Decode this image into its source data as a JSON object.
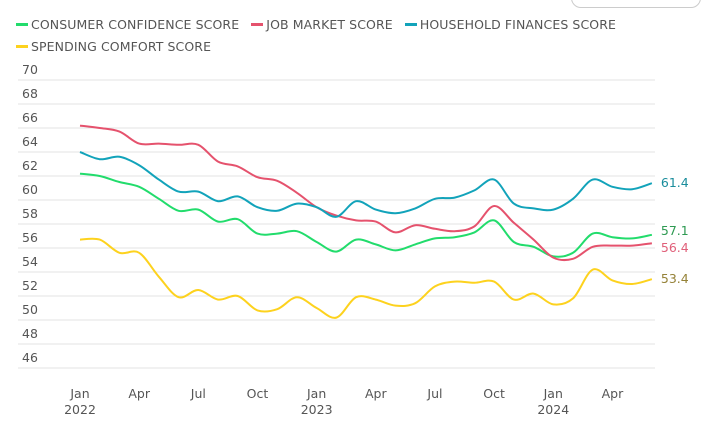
{
  "chart_data": {
    "type": "line",
    "title": "",
    "xlabel": "",
    "ylabel": "",
    "ylim": [
      46,
      70
    ],
    "yticks": [
      46,
      48,
      50,
      52,
      54,
      56,
      58,
      60,
      62,
      64,
      66,
      68,
      70
    ],
    "grid": true,
    "legend_placement": "top",
    "x_range": [
      "2022-01",
      "2024-06"
    ],
    "xtick_labels": [
      {
        "month": "2022-01",
        "label": "Jan",
        "year": "2022"
      },
      {
        "month": "2022-04",
        "label": "Apr",
        "year": ""
      },
      {
        "month": "2022-07",
        "label": "Jul",
        "year": ""
      },
      {
        "month": "2022-10",
        "label": "Oct",
        "year": ""
      },
      {
        "month": "2023-01",
        "label": "Jan",
        "year": "2023"
      },
      {
        "month": "2023-04",
        "label": "Apr",
        "year": ""
      },
      {
        "month": "2023-07",
        "label": "Jul",
        "year": ""
      },
      {
        "month": "2023-10",
        "label": "Oct",
        "year": ""
      },
      {
        "month": "2024-01",
        "label": "Jan",
        "year": "2024"
      },
      {
        "month": "2024-04",
        "label": "Apr",
        "year": ""
      }
    ],
    "x": [
      "2022-01",
      "2022-02",
      "2022-03",
      "2022-04",
      "2022-05",
      "2022-06",
      "2022-07",
      "2022-08",
      "2022-09",
      "2022-10",
      "2022-11",
      "2022-12",
      "2023-01",
      "2023-02",
      "2023-03",
      "2023-04",
      "2023-05",
      "2023-06",
      "2023-07",
      "2023-08",
      "2023-09",
      "2023-10",
      "2023-11",
      "2023-12",
      "2024-01",
      "2024-02",
      "2024-03",
      "2024-04",
      "2024-05",
      "2024-06"
    ],
    "series": [
      {
        "name": "CONSUMER CONFIDENCE SCORE",
        "color": "#22dc6c",
        "label_color": "#2e9a52",
        "end_label": "57.1",
        "values": [
          62.2,
          62.0,
          61.5,
          61.1,
          60.1,
          59.1,
          59.2,
          58.2,
          58.4,
          57.2,
          57.2,
          57.4,
          56.5,
          55.7,
          56.7,
          56.3,
          55.8,
          56.3,
          56.8,
          56.9,
          57.3,
          58.3,
          56.5,
          56.1,
          55.3,
          55.6,
          57.2,
          56.9,
          56.8,
          57.1
        ]
      },
      {
        "name": "JOB MARKET SCORE",
        "color": "#e5526d",
        "label_color": "#e0607a",
        "end_label": "56.4",
        "values": [
          66.2,
          66.0,
          65.7,
          64.7,
          64.7,
          64.6,
          64.6,
          63.2,
          62.8,
          61.9,
          61.6,
          60.6,
          59.4,
          58.7,
          58.3,
          58.2,
          57.3,
          57.9,
          57.6,
          57.4,
          57.8,
          59.5,
          58.1,
          56.7,
          55.2,
          55.1,
          56.1,
          56.2,
          56.2,
          56.4
        ]
      },
      {
        "name": "HOUSEHOLD FINANCES SCORE",
        "color": "#12a3ba",
        "label_color": "#1a8d9c",
        "end_label": "61.4",
        "values": [
          64.0,
          63.4,
          63.6,
          62.9,
          61.7,
          60.7,
          60.7,
          59.9,
          60.3,
          59.4,
          59.1,
          59.7,
          59.4,
          58.6,
          59.9,
          59.2,
          58.9,
          59.3,
          60.1,
          60.2,
          60.8,
          61.7,
          59.7,
          59.3,
          59.2,
          60.1,
          61.7,
          61.1,
          60.9,
          61.4
        ]
      },
      {
        "name": "SPENDING COMFORT SCORE",
        "color": "#fdd21e",
        "label_color": "#958238",
        "end_label": "53.4",
        "values": [
          56.7,
          56.7,
          55.6,
          55.6,
          53.6,
          51.9,
          52.5,
          51.7,
          52.0,
          50.8,
          50.9,
          51.9,
          51.0,
          50.2,
          51.9,
          51.7,
          51.2,
          51.4,
          52.8,
          53.2,
          53.1,
          53.2,
          51.7,
          52.2,
          51.3,
          51.8,
          54.2,
          53.3,
          53.0,
          53.4
        ]
      }
    ]
  }
}
